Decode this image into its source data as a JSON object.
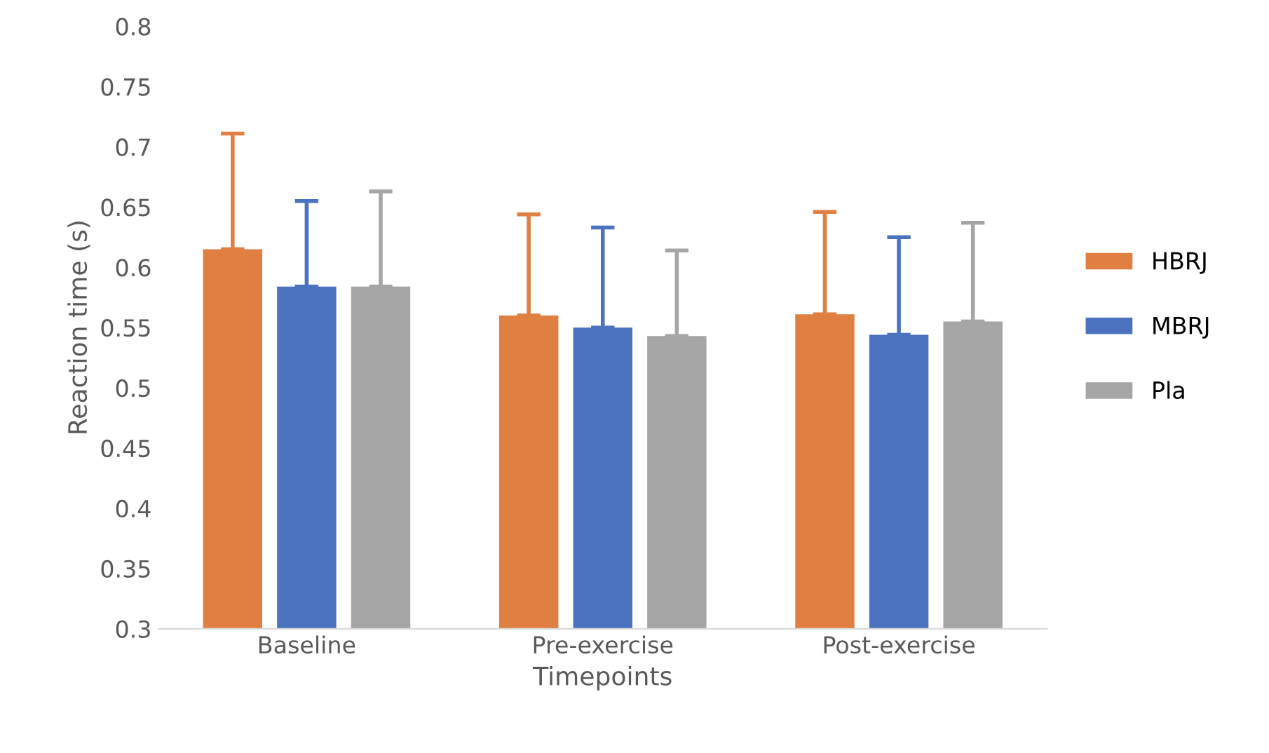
{
  "chart_data": {
    "type": "bar",
    "xlabel": "Timepoints",
    "ylabel": "Reaction time (s)",
    "categories": [
      "Baseline",
      "Pre-exercise",
      "Post-exercise"
    ],
    "series": [
      {
        "name": "HBRJ",
        "color": "#e07f42",
        "values": [
          0.615,
          0.56,
          0.561
        ],
        "errors": [
          [
            0.615,
            0.711
          ],
          [
            0.56,
            0.644
          ],
          [
            0.561,
            0.646
          ]
        ]
      },
      {
        "name": "MBRJ",
        "color": "#4a72be",
        "values": [
          0.584,
          0.55,
          0.544
        ],
        "errors": [
          [
            0.584,
            0.655
          ],
          [
            0.55,
            0.633
          ],
          [
            0.544,
            0.625
          ]
        ]
      },
      {
        "name": "Pla",
        "color": "#a5a5a5",
        "values": [
          0.584,
          0.543,
          0.555
        ],
        "errors": [
          [
            0.584,
            0.663
          ],
          [
            0.543,
            0.614
          ],
          [
            0.555,
            0.637
          ]
        ]
      }
    ],
    "ylim": [
      0.3,
      0.8
    ],
    "yticks": [
      0.3,
      0.35,
      0.4,
      0.45,
      0.5,
      0.55,
      0.6,
      0.65,
      0.7,
      0.75,
      0.8
    ],
    "grid": false,
    "legend": "right"
  }
}
